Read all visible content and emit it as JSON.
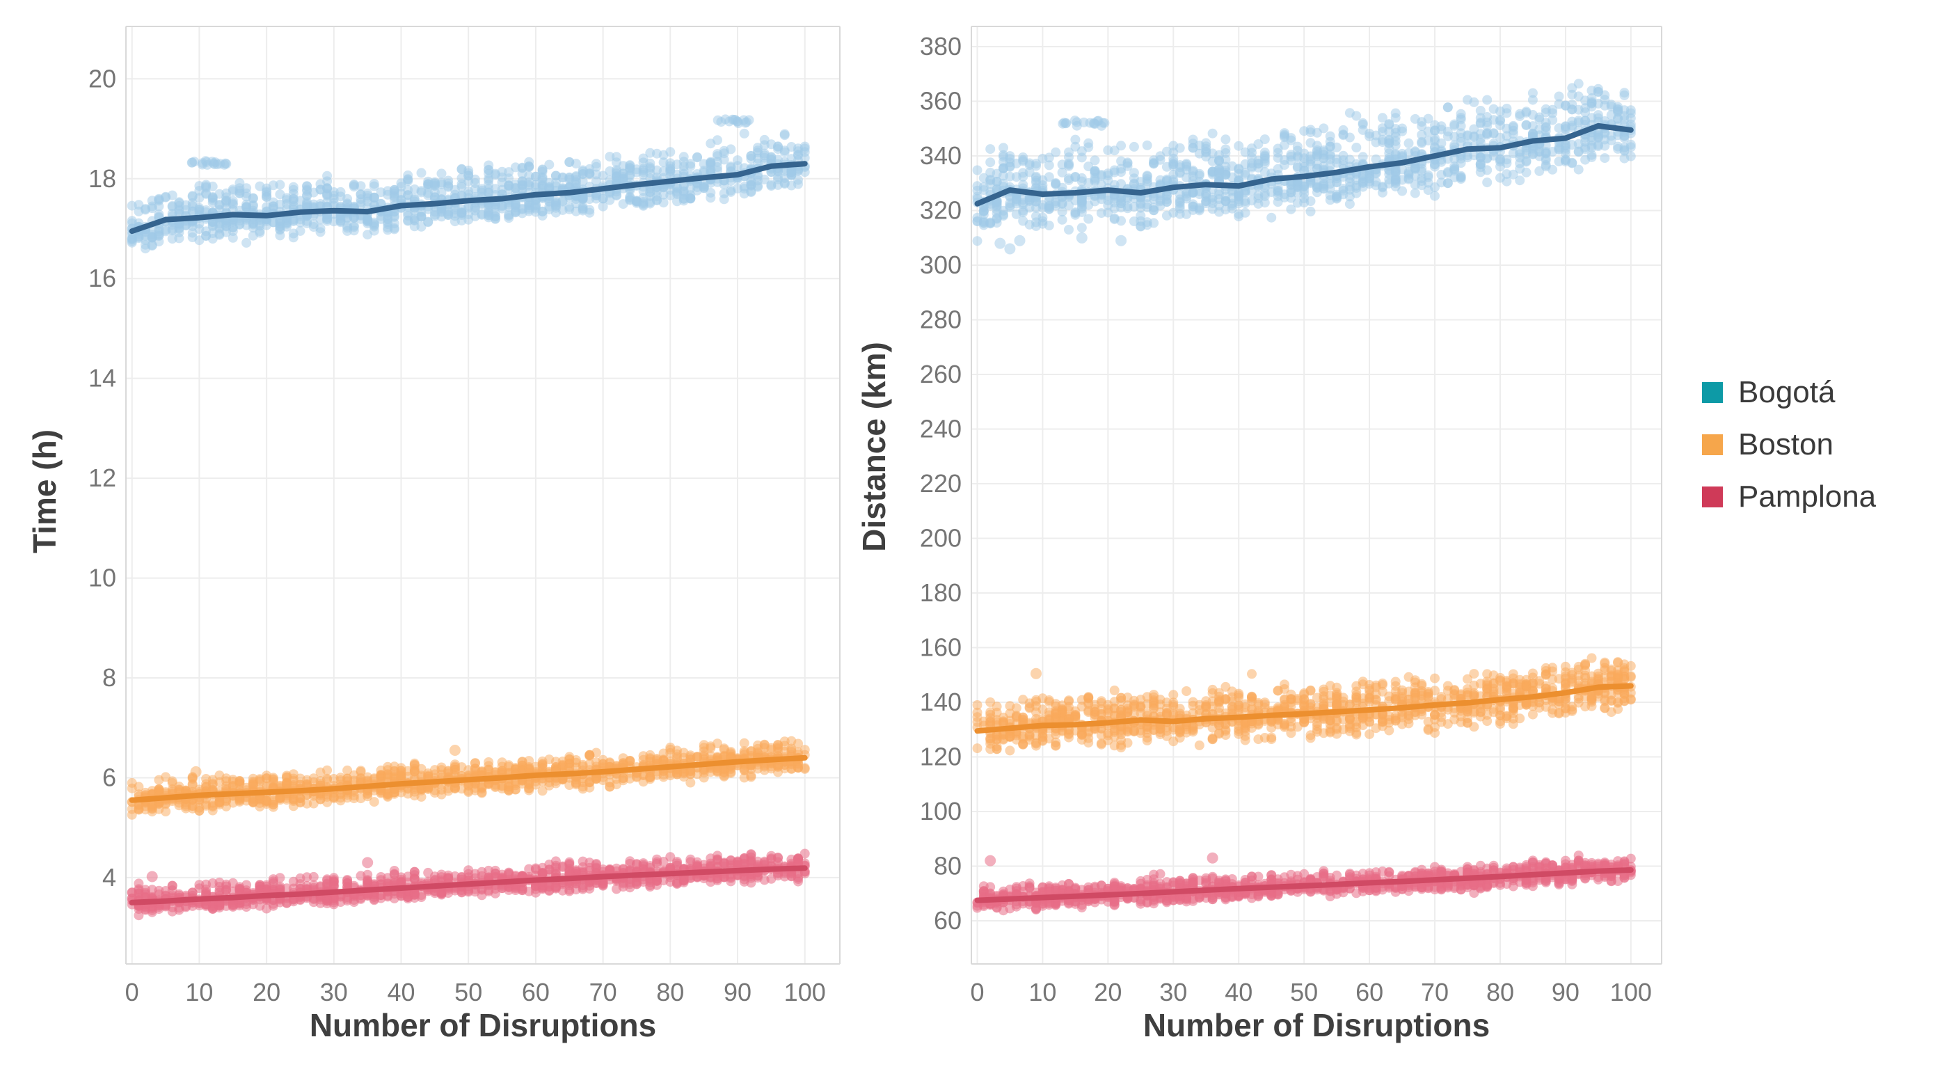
{
  "legend": {
    "items": [
      {
        "label": "Bogotá",
        "color": "#0d9aa6"
      },
      {
        "label": "Boston",
        "color": "#f6a64b"
      },
      {
        "label": "Pamplona",
        "color": "#cf3a58"
      }
    ]
  },
  "colors": {
    "grid": "#ededed",
    "panel_border": "#d9d9d9",
    "tick_label": "#757575",
    "background": "#ffffff"
  },
  "chart_data": [
    {
      "type": "scatter",
      "title": "",
      "xlabel": "Number of Disruptions",
      "ylabel": "Time (h)",
      "x_range": [
        -0.9,
        105.2
      ],
      "y_range": [
        2.27,
        21.05
      ],
      "x_ticks": [
        0,
        10,
        20,
        30,
        40,
        50,
        60,
        70,
        80,
        90,
        100
      ],
      "y_ticks": [
        4,
        6,
        8,
        10,
        12,
        14,
        16,
        18,
        20
      ],
      "grid": true,
      "legend_position": "right",
      "trend_x": [
        0,
        5,
        10,
        15,
        20,
        25,
        30,
        35,
        40,
        45,
        50,
        55,
        60,
        65,
        70,
        75,
        80,
        85,
        90,
        95,
        100
      ],
      "series": [
        {
          "name": "Bogotá",
          "scatter_color": "#9fcae8",
          "scatter_opacity": 0.5,
          "trend_color": "#35648f",
          "trend": [
            16.95,
            17.18,
            17.22,
            17.28,
            17.26,
            17.33,
            17.36,
            17.34,
            17.46,
            17.5,
            17.56,
            17.6,
            17.68,
            17.72,
            17.8,
            17.88,
            17.95,
            18.02,
            18.08,
            18.25,
            18.3
          ],
          "band_up": 0.72,
          "band_down": 0.5,
          "outlier_streaks": [
            [
              8,
              15,
              18.32
            ],
            [
              87,
              92,
              19.15
            ]
          ],
          "outliers": []
        },
        {
          "name": "Boston",
          "scatter_color": "#f9a95c",
          "scatter_opacity": 0.5,
          "trend_color": "#ec8f2f",
          "trend": [
            5.55,
            5.6,
            5.65,
            5.68,
            5.71,
            5.74,
            5.78,
            5.83,
            5.88,
            5.92,
            5.96,
            6.0,
            6.05,
            6.08,
            6.12,
            6.17,
            6.22,
            6.27,
            6.32,
            6.36,
            6.4
          ],
          "band_up": 0.42,
          "band_down": 0.33,
          "outlier_streaks": [],
          "outliers": [
            [
              9.5,
              6.12
            ],
            [
              48,
              6.55
            ]
          ]
        },
        {
          "name": "Pamplona",
          "scatter_color": "#e86d87",
          "scatter_opacity": 0.55,
          "trend_color": "#d04a64",
          "trend": [
            3.5,
            3.53,
            3.57,
            3.6,
            3.64,
            3.67,
            3.71,
            3.75,
            3.79,
            3.83,
            3.87,
            3.91,
            3.95,
            3.98,
            4.02,
            4.05,
            4.08,
            4.11,
            4.14,
            4.17,
            4.19
          ],
          "band_up": 0.35,
          "band_down": 0.28,
          "outlier_streaks": [],
          "outliers": [
            [
              3,
              4.02
            ],
            [
              35,
              4.3
            ]
          ]
        }
      ]
    },
    {
      "type": "scatter",
      "title": "",
      "xlabel": "Number of Disruptions",
      "ylabel": "Distance (km)",
      "x_range": [
        -0.9,
        104.7
      ],
      "y_range": [
        44.2,
        387.4
      ],
      "x_ticks": [
        0,
        10,
        20,
        30,
        40,
        50,
        60,
        70,
        80,
        90,
        100
      ],
      "y_ticks": [
        60,
        80,
        100,
        120,
        140,
        160,
        180,
        200,
        220,
        240,
        260,
        280,
        300,
        320,
        340,
        360,
        380
      ],
      "grid": true,
      "legend_position": "right",
      "trend_x": [
        0,
        5,
        10,
        15,
        20,
        25,
        30,
        35,
        40,
        45,
        50,
        55,
        60,
        65,
        70,
        75,
        80,
        85,
        90,
        95,
        100
      ],
      "series": [
        {
          "name": "Bogotá",
          "scatter_color": "#9fcae8",
          "scatter_opacity": 0.5,
          "trend_color": "#35648f",
          "trend": [
            322.5,
            327.5,
            326.0,
            326.5,
            327.5,
            326.5,
            328.5,
            329.5,
            329.0,
            331.5,
            332.5,
            334.0,
            336.0,
            337.5,
            340.0,
            342.5,
            343.0,
            345.5,
            346.5,
            351.0,
            349.5
          ],
          "band_up": 20,
          "band_down": 14,
          "outlier_streaks": [
            [
              13,
              20,
              352
            ]
          ],
          "outliers": [
            [
              3.5,
              308
            ],
            [
              5,
              306
            ],
            [
              6.5,
              309
            ],
            [
              16,
              310
            ],
            [
              22,
              309
            ]
          ]
        },
        {
          "name": "Boston",
          "scatter_color": "#f9a95c",
          "scatter_opacity": 0.5,
          "trend_color": "#ec8f2f",
          "trend": [
            129.5,
            130.5,
            131.5,
            131.8,
            132.5,
            133.5,
            133.0,
            134.0,
            134.5,
            135.2,
            135.8,
            136.5,
            137.2,
            138.0,
            139.0,
            139.8,
            141.0,
            142.0,
            143.5,
            145.5,
            146.0
          ],
          "band_up": 12,
          "band_down": 10,
          "outlier_streaks": [],
          "outliers": [
            [
              9,
              150.5
            ]
          ]
        },
        {
          "name": "Pamplona",
          "scatter_color": "#e86d87",
          "scatter_opacity": 0.55,
          "trend_color": "#d04a64",
          "trend": [
            67.5,
            68.0,
            68.5,
            69.0,
            69.5,
            70.0,
            70.6,
            71.2,
            71.8,
            72.3,
            72.8,
            73.3,
            73.9,
            74.4,
            75.0,
            75.6,
            76.2,
            76.9,
            77.5,
            78.2,
            78.6
          ],
          "band_up": 5.5,
          "band_down": 4.5,
          "outlier_streaks": [],
          "outliers": [
            [
              2,
              82
            ],
            [
              36,
              83
            ]
          ]
        }
      ]
    }
  ]
}
